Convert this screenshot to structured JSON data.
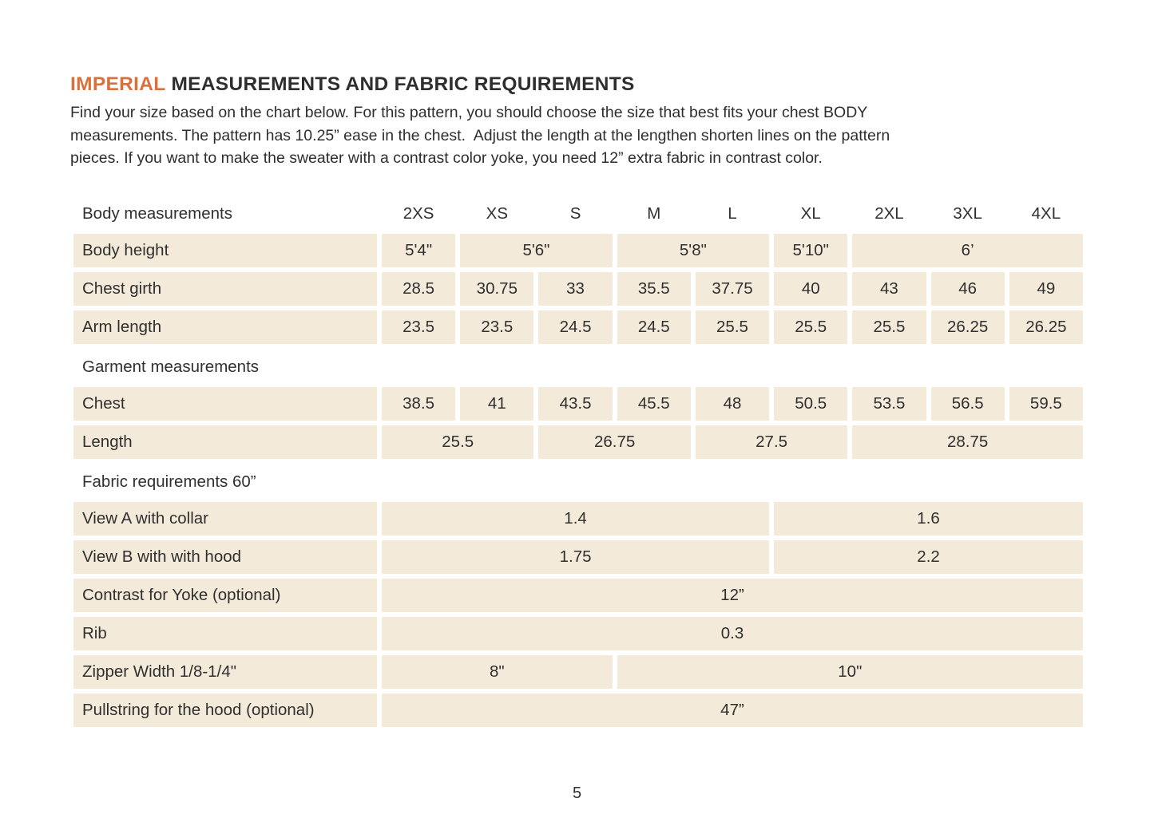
{
  "page": {
    "number": "5"
  },
  "colors": {
    "accent": "#D9713F",
    "cell_bg": "#F3EADA",
    "text": "#303030"
  },
  "header": {
    "title_highlight": "IMPERIAL",
    "title_rest": "MEASUREMENTS AND FABRIC REQUIREMENTS",
    "intro": "Find your size based on the chart below. For this pattern, you should choose the size that best fits your chest BODY\nmeasurements. The pattern has 10.25” ease in the chest.  Adjust the length at the lengthen shorten lines on the pattern\npieces. If you want to make the sweater with a contrast color yoke, you need 12” extra fabric in contrast color."
  },
  "table": {
    "size_labels": [
      "2XS",
      "XS",
      "S",
      "M",
      "L",
      "XL",
      "2XL",
      "3XL",
      "4XL"
    ],
    "rows": [
      {
        "type": "section",
        "label": "Body measurements",
        "show_sizes": true
      },
      {
        "type": "data",
        "label": "Body height",
        "cells": [
          {
            "v": "5'4\"",
            "span": 1
          },
          {
            "v": "5'6\"",
            "span": 2
          },
          {
            "v": "5'8\"",
            "span": 2
          },
          {
            "v": "5'10\"",
            "span": 1
          },
          {
            "v": "6’",
            "span": 3
          }
        ]
      },
      {
        "type": "data",
        "label": "Chest girth",
        "cells": [
          {
            "v": "28.5",
            "span": 1
          },
          {
            "v": "30.75",
            "span": 1
          },
          {
            "v": "33",
            "span": 1
          },
          {
            "v": "35.5",
            "span": 1
          },
          {
            "v": "37.75",
            "span": 1
          },
          {
            "v": "40",
            "span": 1
          },
          {
            "v": "43",
            "span": 1
          },
          {
            "v": "46",
            "span": 1
          },
          {
            "v": "49",
            "span": 1
          }
        ]
      },
      {
        "type": "data",
        "label": "Arm length",
        "cells": [
          {
            "v": "23.5",
            "span": 1
          },
          {
            "v": "23.5",
            "span": 1
          },
          {
            "v": "24.5",
            "span": 1
          },
          {
            "v": "24.5",
            "span": 1
          },
          {
            "v": "25.5",
            "span": 1
          },
          {
            "v": "25.5",
            "span": 1
          },
          {
            "v": "25.5",
            "span": 1
          },
          {
            "v": "26.25",
            "span": 1
          },
          {
            "v": "26.25",
            "span": 1
          }
        ]
      },
      {
        "type": "section",
        "label": "Garment measurements",
        "show_sizes": false
      },
      {
        "type": "data",
        "label": "Chest",
        "cells": [
          {
            "v": "38.5",
            "span": 1
          },
          {
            "v": "41",
            "span": 1
          },
          {
            "v": "43.5",
            "span": 1
          },
          {
            "v": "45.5",
            "span": 1
          },
          {
            "v": "48",
            "span": 1
          },
          {
            "v": "50.5",
            "span": 1
          },
          {
            "v": "53.5",
            "span": 1
          },
          {
            "v": "56.5",
            "span": 1
          },
          {
            "v": "59.5",
            "span": 1
          }
        ]
      },
      {
        "type": "data",
        "label": "Length",
        "cells": [
          {
            "v": "25.5",
            "span": 2
          },
          {
            "v": "26.75",
            "span": 2
          },
          {
            "v": "27.5",
            "span": 2
          },
          {
            "v": "28.75",
            "span": 3
          }
        ]
      },
      {
        "type": "section",
        "label": "Fabric requirements 60”",
        "show_sizes": false
      },
      {
        "type": "data",
        "label": "View A with collar",
        "cells": [
          {
            "v": "1.4",
            "span": 5
          },
          {
            "v": "1.6",
            "span": 4
          }
        ]
      },
      {
        "type": "data",
        "label": "View B with with hood",
        "cells": [
          {
            "v": "1.75",
            "span": 5
          },
          {
            "v": "2.2",
            "span": 4
          }
        ]
      },
      {
        "type": "data",
        "label": "Contrast for Yoke (optional)",
        "cells": [
          {
            "v": "12”",
            "span": 9
          }
        ]
      },
      {
        "type": "data",
        "label": "Rib",
        "cells": [
          {
            "v": "0.3",
            "span": 9
          }
        ]
      },
      {
        "type": "data",
        "label": "Zipper Width 1/8-1/4\"",
        "cells": [
          {
            "v": "8\"",
            "span": 3
          },
          {
            "v": "10\"",
            "span": 6
          }
        ]
      },
      {
        "type": "data",
        "label": "Pullstring for the hood (optional)",
        "cells": [
          {
            "v": "47”",
            "span": 9
          }
        ]
      }
    ]
  }
}
